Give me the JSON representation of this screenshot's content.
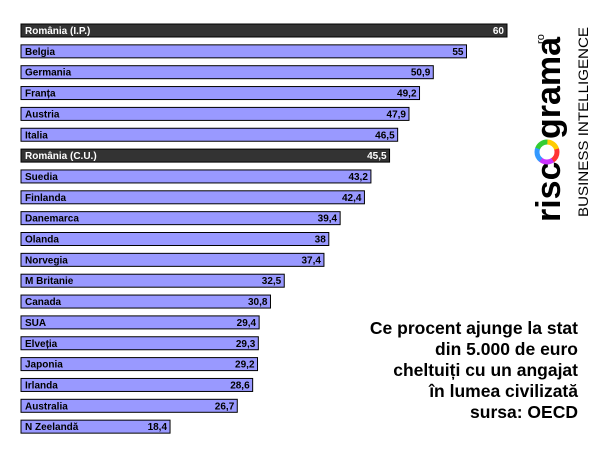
{
  "chart_data": {
    "type": "bar",
    "orientation": "horizontal",
    "categories": [
      "România (I.P.)",
      "Belgia",
      "Germania",
      "Franța",
      "Austria",
      "Italia",
      "România (C.U.)",
      "Suedia",
      "Finlanda",
      "Danemarca",
      "Olanda",
      "Norvegia",
      "M Britanie",
      "Canada",
      "SUA",
      "Elveția",
      "Japonia",
      "Irlanda",
      "Australia",
      "N Zeelandă"
    ],
    "values": [
      60,
      55,
      50.9,
      49.2,
      47.9,
      46.5,
      45.5,
      43.2,
      42.4,
      39.4,
      38,
      37.4,
      32.5,
      30.8,
      29.4,
      29.3,
      29.2,
      28.6,
      26.7,
      18.4
    ],
    "value_labels": [
      "60",
      "55",
      "50,9",
      "49,2",
      "47,9",
      "46,5",
      "45,5",
      "43,2",
      "42,4",
      "39,4",
      "38",
      "37,4",
      "32,5",
      "30,8",
      "29,4",
      "29,3",
      "29,2",
      "28,6",
      "26,7",
      "18,4"
    ],
    "highlight_categories": [
      "România (I.P.)",
      "România (C.U.)"
    ],
    "xlim": [
      0,
      60
    ],
    "grid": false,
    "legend": "none",
    "colors": {
      "bar": "#9999ff",
      "highlight": "#333333",
      "label_normal": "#000000",
      "label_highlight": "#ffffff",
      "border": "#000000"
    }
  },
  "caption": {
    "lines": [
      "Ce procent ajunge la stat",
      "din 5.000 de euro",
      "cheltuiți cu un angajat",
      "în lumea civilizată",
      "sursa: OECD"
    ]
  },
  "logo": {
    "wordmark_left": "risc",
    "wordmark_right": "grama",
    "suffix": ".ro",
    "tagline": "BUSINESS INTELLIGENCE",
    "colors": {
      "text": "#000000",
      "ring": [
        "#ffcc00",
        "#ff3333",
        "#cc33ff",
        "#3399ff",
        "#33cc33"
      ]
    },
    "icon": "color-ring-icon"
  }
}
